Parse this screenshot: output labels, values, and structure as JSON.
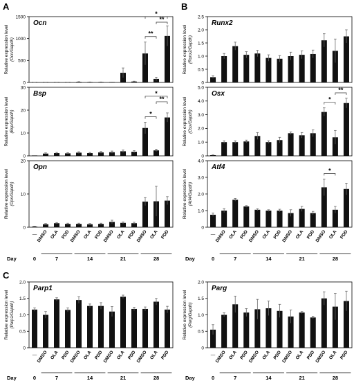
{
  "figure": {
    "panel_letters": [
      "A",
      "B",
      "C"
    ],
    "ylabel": "Relative expression level",
    "day_label": "Day",
    "days": [
      "0",
      "7",
      "14",
      "21",
      "28"
    ],
    "categories": [
      "—",
      "DMSO",
      "OLA",
      "PDD",
      "DMSO",
      "OLA",
      "PDD",
      "DMSO",
      "OLA",
      "PDD",
      "DMSO",
      "OLA",
      "PDD"
    ]
  },
  "chart_data": [
    {
      "id": "ocn",
      "type": "bar",
      "title": "Ocn",
      "ylabel_sub": "(Ocn/Gapdh)",
      "ylim": [
        0,
        1500
      ],
      "ticks": [
        0,
        500,
        1000,
        1500
      ],
      "tick_labels": [
        "0",
        "500",
        "1000",
        "1500"
      ],
      "values": [
        2,
        3,
        3,
        3,
        12,
        8,
        8,
        6,
        220,
        20,
        660,
        80,
        1060
      ],
      "errors": [
        1,
        1,
        1,
        1,
        5,
        3,
        3,
        2,
        110,
        8,
        260,
        40,
        230
      ],
      "significance": [
        {
          "a": 10,
          "b": 11,
          "label": "**",
          "level": 0
        },
        {
          "a": 11,
          "b": 12,
          "label": "**",
          "level": 1
        },
        {
          "a": 10,
          "b": 12,
          "label": "*",
          "level": 2
        }
      ]
    },
    {
      "id": "bsp",
      "type": "bar",
      "title": "Bsp",
      "ylabel_sub": "(Bsp/Gapdh)",
      "ylim": [
        0,
        30
      ],
      "ticks": [
        0,
        10,
        20,
        30
      ],
      "tick_labels": [
        "0",
        "10",
        "20",
        "30"
      ],
      "values": [
        0,
        1.0,
        1.2,
        1.1,
        1.4,
        1.2,
        1.5,
        1.6,
        2.0,
        1.8,
        12.2,
        2.4,
        16.8
      ],
      "errors": [
        0,
        0.3,
        0.3,
        0.3,
        0.4,
        0.3,
        0.4,
        0.5,
        0.6,
        0.5,
        2.5,
        0.5,
        2.0
      ],
      "significance": [
        {
          "a": 10,
          "b": 11,
          "label": "*",
          "level": 0
        },
        {
          "a": 11,
          "b": 12,
          "label": "**",
          "level": 1
        },
        {
          "a": 10,
          "b": 12,
          "label": "*",
          "level": 2
        }
      ]
    },
    {
      "id": "opn",
      "type": "bar",
      "title": "Opn",
      "ylabel_sub": "(Opn/Gapdh)",
      "ylim": [
        0,
        20
      ],
      "ticks": [
        0,
        10,
        20
      ],
      "tick_labels": [
        "0",
        "10",
        "20"
      ],
      "values": [
        0.2,
        0.9,
        1.2,
        1.0,
        1.0,
        0.9,
        1.0,
        1.6,
        1.3,
        1.2,
        7.7,
        7.8,
        8.0
      ],
      "errors": [
        0.1,
        0.2,
        0.2,
        0.2,
        0.2,
        0.2,
        0.2,
        0.5,
        0.3,
        0.3,
        1.2,
        4.5,
        1.2
      ],
      "significance": []
    },
    {
      "id": "runx2",
      "type": "bar",
      "title": "Runx2",
      "ylabel_sub": "(Runx2/Gapdh)",
      "ylim": [
        0,
        2.5
      ],
      "ticks": [
        0,
        0.5,
        1.0,
        1.5,
        2.0,
        2.5
      ],
      "tick_labels": [
        "0",
        "0.5",
        "1.0",
        "1.5",
        "2.0",
        "2.5"
      ],
      "values": [
        0.2,
        1.0,
        1.38,
        1.05,
        1.1,
        0.93,
        0.9,
        1.0,
        1.05,
        1.08,
        1.6,
        1.2,
        1.75
      ],
      "errors": [
        0.05,
        0.1,
        0.15,
        0.12,
        0.12,
        0.12,
        0.12,
        0.15,
        0.15,
        0.15,
        0.25,
        0.45,
        0.25
      ],
      "significance": []
    },
    {
      "id": "osx",
      "type": "bar",
      "title": "Osx",
      "ylabel_sub": "(Osx/Gapdh)",
      "ylim": [
        0,
        5
      ],
      "ticks": [
        0,
        1,
        2,
        3,
        4,
        5
      ],
      "tick_labels": [
        "0",
        "1.0",
        "2.0",
        "3.0",
        "4.0",
        "5.0"
      ],
      "values": [
        0.05,
        1.0,
        1.0,
        1.05,
        1.45,
        1.0,
        1.15,
        1.65,
        1.5,
        1.65,
        3.2,
        1.35,
        3.85
      ],
      "errors": [
        0.02,
        0.1,
        0.1,
        0.1,
        0.25,
        0.1,
        0.2,
        0.1,
        0.2,
        0.25,
        0.3,
        0.5,
        0.35
      ],
      "significance": [
        {
          "a": 10,
          "b": 11,
          "label": "*",
          "level": 0
        },
        {
          "a": 11,
          "b": 12,
          "label": "**",
          "level": 1
        }
      ]
    },
    {
      "id": "atf4",
      "type": "bar",
      "title": "Atf4",
      "ylabel_sub": "(Atf4/Gapdh)",
      "ylim": [
        0,
        4
      ],
      "ticks": [
        0,
        1,
        2,
        3,
        4
      ],
      "tick_labels": [
        "0",
        "1.0",
        "2.0",
        "3.0",
        "4.0"
      ],
      "values": [
        0.75,
        1.0,
        1.65,
        1.25,
        1.05,
        1.0,
        1.0,
        0.85,
        1.1,
        0.85,
        2.4,
        1.05,
        2.3
      ],
      "errors": [
        0.1,
        0.12,
        0.08,
        0.05,
        0.06,
        0.05,
        0.08,
        0.2,
        0.15,
        0.1,
        0.5,
        0.2,
        0.35
      ],
      "significance": [
        {
          "a": 10,
          "b": 11,
          "label": "*",
          "level": 0
        }
      ]
    },
    {
      "id": "parp1",
      "type": "bar",
      "title": "Parp1",
      "ylabel_sub": "(Parp1/Gapdh)",
      "ylim": [
        0,
        2.0
      ],
      "ticks": [
        0,
        0.5,
        1.0,
        1.5,
        2.0
      ],
      "tick_labels": [
        "0",
        "0.5",
        "1.0",
        "1.5",
        "2.0"
      ],
      "values": [
        1.16,
        1.0,
        1.47,
        1.15,
        1.45,
        1.27,
        1.27,
        1.1,
        1.55,
        1.18,
        1.18,
        1.4,
        1.16
      ],
      "errors": [
        0.05,
        0.1,
        0.05,
        0.06,
        0.1,
        0.06,
        0.1,
        0.15,
        0.05,
        0.05,
        0.06,
        0.1,
        0.1
      ],
      "significance": []
    },
    {
      "id": "parg",
      "type": "bar",
      "title": "Parg",
      "ylabel_sub": "(Parg/Gapdh)",
      "ylim": [
        0,
        2.0
      ],
      "ticks": [
        0,
        0.5,
        1.0,
        1.5,
        2.0
      ],
      "tick_labels": [
        "0",
        "0.5",
        "1.0",
        "1.5",
        "2.0"
      ],
      "values": [
        0.55,
        1.0,
        1.32,
        1.07,
        1.17,
        1.2,
        1.12,
        0.95,
        1.07,
        0.92,
        1.5,
        1.25,
        1.42
      ],
      "errors": [
        0.15,
        0.06,
        0.25,
        0.12,
        0.3,
        0.22,
        0.2,
        0.2,
        0.03,
        0.04,
        0.2,
        0.4,
        0.3
      ],
      "significance": []
    }
  ]
}
